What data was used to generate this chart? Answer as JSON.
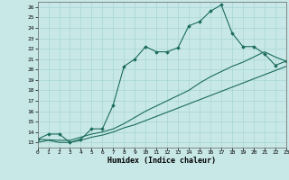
{
  "xlabel": "Humidex (Indice chaleur)",
  "xlim": [
    0,
    23
  ],
  "ylim": [
    12.5,
    26.5
  ],
  "xticks": [
    0,
    1,
    2,
    3,
    4,
    5,
    6,
    7,
    8,
    9,
    10,
    11,
    12,
    13,
    14,
    15,
    16,
    17,
    18,
    19,
    20,
    21,
    22,
    23
  ],
  "yticks": [
    13,
    14,
    15,
    16,
    17,
    18,
    19,
    20,
    21,
    22,
    23,
    24,
    25,
    26
  ],
  "bg_color": "#c8e8e8",
  "grid_color": "#a8d4d4",
  "line_color": "#1a6b5a",
  "curve1_x": [
    0,
    1,
    2,
    3,
    4,
    5,
    6,
    7,
    8,
    9,
    10,
    11,
    12,
    13,
    14,
    15,
    16,
    17,
    18,
    19,
    20,
    21,
    22,
    23
  ],
  "curve1_y": [
    13.3,
    13.8,
    13.8,
    13.0,
    13.3,
    14.3,
    14.3,
    16.6,
    20.3,
    21.0,
    22.2,
    21.7,
    21.7,
    22.1,
    24.2,
    24.6,
    25.6,
    26.2,
    23.5,
    22.2,
    22.2,
    21.5,
    20.4,
    20.8
  ],
  "curve2_x": [
    0,
    2,
    3,
    4,
    5,
    6,
    7,
    8,
    9,
    10,
    11,
    12,
    13,
    14,
    15,
    16,
    17,
    18,
    19,
    20,
    21,
    22,
    23
  ],
  "curve2_y": [
    13.3,
    13.2,
    13.2,
    13.5,
    13.8,
    14.0,
    14.3,
    14.8,
    15.4,
    16.0,
    16.5,
    17.0,
    17.5,
    18.0,
    18.7,
    19.3,
    19.8,
    20.3,
    20.7,
    21.2,
    21.7,
    21.2,
    20.8
  ],
  "curve3_x": [
    0,
    1,
    2,
    3,
    4,
    5,
    6,
    7,
    8,
    9,
    10,
    11,
    12,
    13,
    14,
    15,
    16,
    17,
    18,
    19,
    20,
    21,
    22,
    23
  ],
  "curve3_y": [
    13.0,
    13.2,
    13.0,
    13.0,
    13.2,
    13.5,
    13.7,
    14.0,
    14.4,
    14.7,
    15.1,
    15.5,
    15.9,
    16.3,
    16.7,
    17.1,
    17.5,
    17.9,
    18.3,
    18.7,
    19.1,
    19.5,
    19.9,
    20.3
  ]
}
